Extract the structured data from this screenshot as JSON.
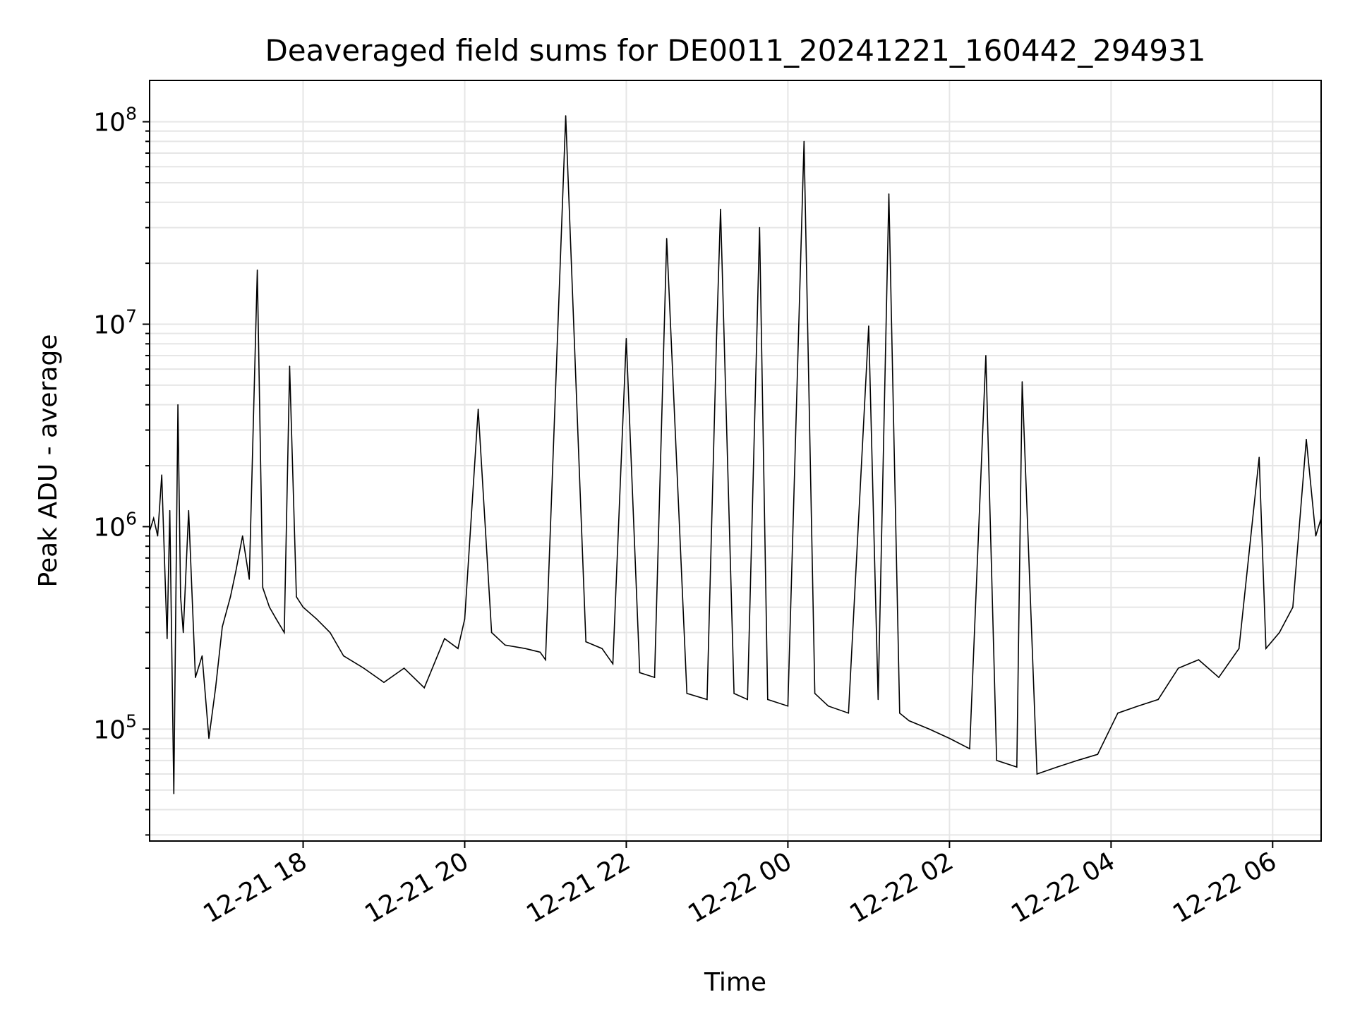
{
  "chart_data": {
    "type": "line",
    "title": "Deaveraged field sums for DE0011_20241221_160442_294931",
    "xlabel": "Time",
    "ylabel": "Peak ADU - average",
    "y_scale": "log",
    "ylim": [
      28000,
      160000000
    ],
    "xlim": [
      "2024-12-21 16:06",
      "2024-12-22 06:36"
    ],
    "x_tick_labels": [
      "12-21 18",
      "12-21 20",
      "12-21 22",
      "12-22 00",
      "12-22 02",
      "12-22 04",
      "12-22 06"
    ],
    "x_ticks": [
      "2024-12-21 18:00",
      "2024-12-21 20:00",
      "2024-12-21 22:00",
      "2024-12-22 00:00",
      "2024-12-22 02:00",
      "2024-12-22 04:00",
      "2024-12-22 06:00"
    ],
    "y_tick_labels": [
      {
        "base": "10",
        "exp": "5",
        "value": 100000
      },
      {
        "base": "10",
        "exp": "6",
        "value": 1000000
      },
      {
        "base": "10",
        "exp": "7",
        "value": 10000000
      },
      {
        "base": "10",
        "exp": "8",
        "value": 100000000
      }
    ],
    "grid": true,
    "grid_color": "#e6e6e6",
    "line_color": "#000000",
    "series": [
      {
        "x": [
          "2024-12-21 16:06",
          "2024-12-21 16:09",
          "2024-12-21 16:12",
          "2024-12-21 16:15",
          "2024-12-21 16:17",
          "2024-12-21 16:19",
          "2024-12-21 16:21",
          "2024-12-21 16:24",
          "2024-12-21 16:27",
          "2024-12-21 16:29",
          "2024-12-21 16:31",
          "2024-12-21 16:35",
          "2024-12-21 16:40",
          "2024-12-21 16:45",
          "2024-12-21 16:50",
          "2024-12-21 16:55",
          "2024-12-21 17:00",
          "2024-12-21 17:06",
          "2024-12-21 17:10",
          "2024-12-21 17:15",
          "2024-12-21 17:20",
          "2024-12-21 17:26",
          "2024-12-21 17:30",
          "2024-12-21 17:35",
          "2024-12-21 17:40",
          "2024-12-21 17:46",
          "2024-12-21 17:50",
          "2024-12-21 17:55",
          "2024-12-21 18:00",
          "2024-12-21 18:10",
          "2024-12-21 18:20",
          "2024-12-21 18:30",
          "2024-12-21 18:45",
          "2024-12-21 19:00",
          "2024-12-21 19:15",
          "2024-12-21 19:30",
          "2024-12-21 19:45",
          "2024-12-21 19:55",
          "2024-12-21 20:00",
          "2024-12-21 20:10",
          "2024-12-21 20:20",
          "2024-12-21 20:30",
          "2024-12-21 20:45",
          "2024-12-21 20:56",
          "2024-12-21 21:00",
          "2024-12-21 21:15",
          "2024-12-21 21:30",
          "2024-12-21 21:42",
          "2024-12-21 21:50",
          "2024-12-21 22:00",
          "2024-12-21 22:10",
          "2024-12-21 22:21",
          "2024-12-21 22:30",
          "2024-12-21 22:45",
          "2024-12-21 23:00",
          "2024-12-21 23:07",
          "2024-12-21 23:10",
          "2024-12-21 23:20",
          "2024-12-21 23:30",
          "2024-12-21 23:39",
          "2024-12-21 23:45",
          "2024-12-22 00:00",
          "2024-12-22 00:12",
          "2024-12-22 00:20",
          "2024-12-22 00:30",
          "2024-12-22 00:45",
          "2024-12-22 01:00",
          "2024-12-22 01:07",
          "2024-12-22 01:15",
          "2024-12-22 01:23",
          "2024-12-22 01:30",
          "2024-12-22 01:45",
          "2024-12-22 02:00",
          "2024-12-22 02:15",
          "2024-12-22 02:27",
          "2024-12-22 02:35",
          "2024-12-22 02:50",
          "2024-12-22 02:54",
          "2024-12-22 03:05",
          "2024-12-22 03:20",
          "2024-12-22 03:35",
          "2024-12-22 03:50",
          "2024-12-22 04:05",
          "2024-12-22 04:20",
          "2024-12-22 04:35",
          "2024-12-22 04:50",
          "2024-12-22 05:05",
          "2024-12-22 05:20",
          "2024-12-22 05:35",
          "2024-12-22 05:50",
          "2024-12-22 05:55",
          "2024-12-22 06:05",
          "2024-12-22 06:15",
          "2024-12-22 06:25",
          "2024-12-22 06:32",
          "2024-12-22 06:36"
        ],
        "y": [
          950000,
          1100000,
          900000,
          1800000,
          700000,
          280000,
          1200000,
          48000,
          4000000,
          450000,
          300000,
          1200000,
          180000,
          230000,
          90000,
          160000,
          320000,
          450000,
          600000,
          900000,
          550000,
          18500000,
          500000,
          400000,
          350000,
          300000,
          6200000,
          450000,
          400000,
          350000,
          300000,
          230000,
          200000,
          170000,
          200000,
          160000,
          280000,
          250000,
          350000,
          3800000,
          300000,
          260000,
          250000,
          240000,
          220000,
          107000000,
          270000,
          250000,
          210000,
          8500000,
          190000,
          180000,
          26500000,
          150000,
          140000,
          8500000,
          37000000,
          150000,
          140000,
          30000000,
          140000,
          130000,
          80000000,
          150000,
          130000,
          120000,
          9800000,
          140000,
          44000000,
          120000,
          110000,
          100000,
          90000,
          80000,
          7000000,
          70000,
          65000,
          5200000,
          60000,
          65000,
          70000,
          75000,
          120000,
          130000,
          140000,
          200000,
          220000,
          180000,
          250000,
          2200000,
          250000,
          300000,
          400000,
          2700000,
          900000,
          1100000
        ]
      }
    ]
  }
}
